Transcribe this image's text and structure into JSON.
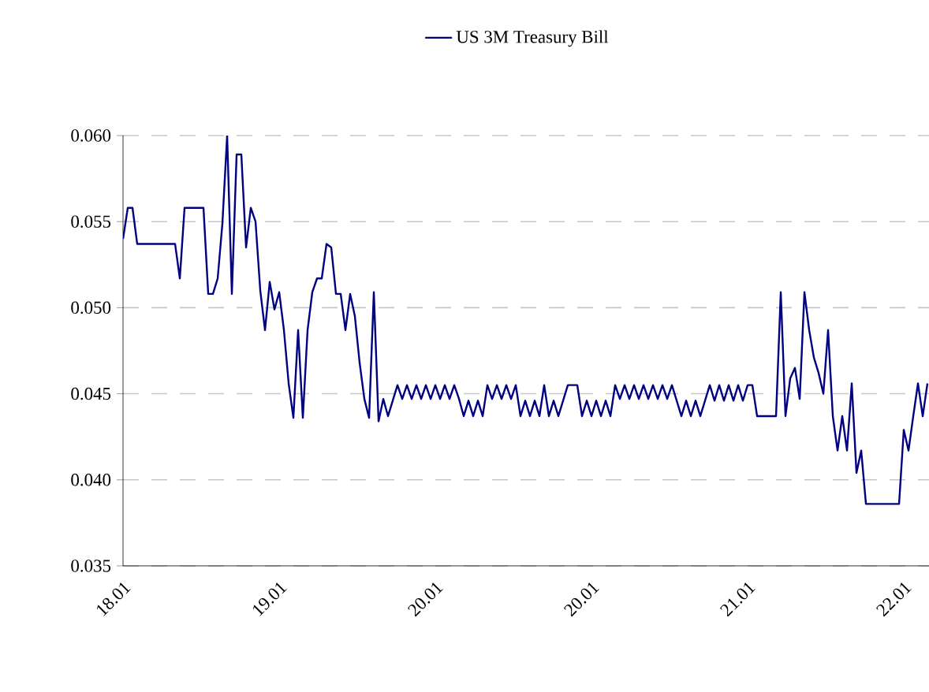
{
  "chart_data": {
    "type": "line",
    "categories": [
      "18.01",
      null,
      null,
      null,
      null,
      null,
      null,
      null,
      null,
      null,
      null,
      null,
      null,
      null,
      null,
      null,
      null,
      null,
      null,
      null,
      null,
      null,
      null,
      null,
      null,
      null,
      null,
      null,
      null,
      null,
      null,
      null,
      null,
      "19.01",
      null,
      null,
      null,
      null,
      null,
      null,
      null,
      null,
      null,
      null,
      null,
      null,
      null,
      null,
      null,
      null,
      null,
      null,
      null,
      null,
      null,
      null,
      null,
      null,
      null,
      null,
      null,
      null,
      null,
      null,
      null,
      null,
      "20.01",
      null,
      null,
      null,
      null,
      null,
      null,
      null,
      null,
      null,
      null,
      null,
      null,
      null,
      null,
      null,
      null,
      null,
      null,
      null,
      null,
      null,
      null,
      null,
      null,
      null,
      null,
      null,
      null,
      null,
      null,
      null,
      null,
      "20.01",
      null,
      null,
      null,
      null,
      null,
      null,
      null,
      null,
      null,
      null,
      null,
      null,
      null,
      null,
      null,
      null,
      null,
      null,
      null,
      null,
      null,
      null,
      null,
      null,
      null,
      null,
      null,
      null,
      null,
      null,
      null,
      null,
      "21.01",
      null,
      null,
      null,
      null,
      null,
      null,
      null,
      null,
      null,
      null,
      null,
      null,
      null,
      null,
      null,
      null,
      null,
      null,
      null,
      null,
      null,
      null,
      null,
      null,
      null,
      null,
      null,
      null,
      null,
      null,
      null,
      null,
      "22.01",
      null,
      null,
      null,
      null,
      null
    ],
    "series": [
      {
        "name": "US 3M Treasury Bill",
        "color": "#000080",
        "values": [
          0.054,
          0.0558,
          0.0558,
          0.0537,
          0.0537,
          0.0537,
          0.0537,
          0.0537,
          0.0537,
          0.0537,
          0.0537,
          0.0537,
          0.0517,
          0.0558,
          0.0558,
          0.0558,
          0.0558,
          0.0558,
          0.0508,
          0.0508,
          0.0517,
          0.0549,
          0.06,
          0.0508,
          0.0589,
          0.0589,
          0.0535,
          0.0558,
          0.055,
          0.051,
          0.0487,
          0.0515,
          0.0499,
          0.0509,
          0.0487,
          0.0456,
          0.0436,
          0.0487,
          0.0436,
          0.0487,
          0.0509,
          0.0517,
          0.0517,
          0.0537,
          0.0535,
          0.0508,
          0.0508,
          0.0487,
          0.0508,
          0.0495,
          0.0468,
          0.0447,
          0.0436,
          0.0509,
          0.0434,
          0.0447,
          0.0437,
          0.0446,
          0.0455,
          0.0447,
          0.0455,
          0.0447,
          0.0455,
          0.0447,
          0.0455,
          0.0447,
          0.0455,
          0.0447,
          0.0455,
          0.0447,
          0.0455,
          0.0447,
          0.0437,
          0.0446,
          0.0437,
          0.0446,
          0.0437,
          0.0455,
          0.0447,
          0.0455,
          0.0447,
          0.0455,
          0.0447,
          0.0455,
          0.0437,
          0.0446,
          0.0437,
          0.0446,
          0.0437,
          0.0455,
          0.0437,
          0.0446,
          0.0437,
          0.0446,
          0.0455,
          0.0455,
          0.0455,
          0.0437,
          0.0446,
          0.0437,
          0.0446,
          0.0437,
          0.0446,
          0.0437,
          0.0455,
          0.0447,
          0.0455,
          0.0447,
          0.0455,
          0.0447,
          0.0455,
          0.0447,
          0.0455,
          0.0447,
          0.0455,
          0.0447,
          0.0455,
          0.0446,
          0.0437,
          0.0446,
          0.0437,
          0.0446,
          0.0437,
          0.0446,
          0.0455,
          0.0446,
          0.0455,
          0.0446,
          0.0455,
          0.0446,
          0.0455,
          0.0446,
          0.0455,
          0.0455,
          0.0437,
          0.0437,
          0.0437,
          0.0437,
          0.0437,
          0.0509,
          0.0437,
          0.0459,
          0.0465,
          0.0447,
          0.0509,
          0.0487,
          0.0471,
          0.0462,
          0.045,
          0.0487,
          0.0437,
          0.0417,
          0.0437,
          0.0417,
          0.0456,
          0.0404,
          0.0417,
          0.0386,
          0.0386,
          0.0386,
          0.0386,
          0.0386,
          0.0386,
          0.0386,
          0.0386,
          0.0429,
          0.0417,
          0.0437,
          0.0456,
          0.0437,
          0.0456
        ]
      }
    ],
    "ylim": [
      0.035,
      0.06
    ],
    "yticks": [
      0.035,
      {
        "value": 0.04,
        "label": "0.040"
      },
      0.045,
      {
        "value": 0.05,
        "label": "0.050"
      },
      0.055,
      {
        "value": 0.06,
        "label": "0.060"
      }
    ],
    "grid": "y",
    "legend": "top",
    "marker": "none",
    "line_style": "solid"
  }
}
